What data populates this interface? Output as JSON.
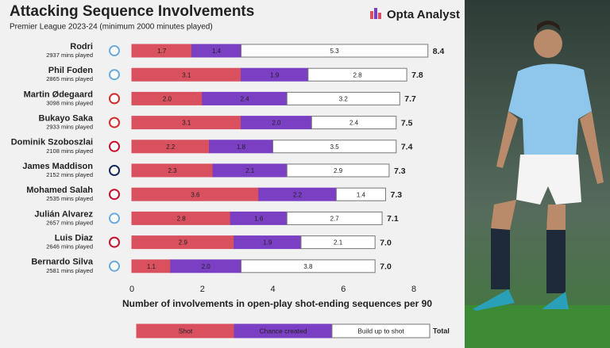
{
  "chart_data": {
    "type": "stacked-barh",
    "title": "Attacking Sequence Involvements",
    "subtitle": "Premier League 2023-24 (minimum 2000 minutes played)",
    "brand": "Opta Analyst",
    "xlabel": "Number of involvements in open-play shot-ending sequences per 90",
    "categories": [
      "Rodri",
      "Phil Foden",
      "Martin Ødegaard",
      "Bukayo Saka",
      "Dominik Szoboszlai",
      "James Maddison",
      "Mohamed Salah",
      "Julián Alvarez",
      "Luis Diaz",
      "Bernardo Silva"
    ],
    "sublabels": [
      "2937 mins played",
      "2865 mins played",
      "3098 mins played",
      "2933 mins played",
      "2108 mins played",
      "2152 mins played",
      "2535 mins played",
      "2657 mins played",
      "2646 mins played",
      "2581 mins played"
    ],
    "series": [
      {
        "name": "Shot",
        "color": "#d9505f",
        "values": [
          1.7,
          3.1,
          2.0,
          3.1,
          2.2,
          2.3,
          3.6,
          2.8,
          2.9,
          1.1
        ],
        "value_labels": [
          "1.7",
          "3.1",
          "2.0",
          "3.1",
          "2.2",
          "2.3",
          "3.6",
          "2.8",
          "2.9",
          "1.1"
        ]
      },
      {
        "name": "Chance created",
        "color": "#7b3fc4",
        "values": [
          1.4,
          1.9,
          2.4,
          2.0,
          1.8,
          2.1,
          2.2,
          1.6,
          1.9,
          2.0
        ],
        "value_labels": [
          "1.4",
          "1.9",
          "2.4",
          "2.0",
          "1.8",
          "2.1",
          "2.2",
          "1.6",
          "1.9",
          "2.0"
        ]
      },
      {
        "name": "Build up to shot",
        "color": "#ffffff",
        "values": [
          5.3,
          2.8,
          3.2,
          2.4,
          3.5,
          2.9,
          1.4,
          2.7,
          2.1,
          3.8
        ],
        "value_labels": [
          "5.3",
          "2.8",
          "3.2",
          "2.4",
          "3.5",
          "2.9",
          "1.4",
          "2.7",
          "2.1",
          "3.8"
        ]
      }
    ],
    "totals": {
      "name": "Total",
      "values": [
        8.4,
        7.8,
        7.7,
        7.5,
        7.4,
        7.3,
        7.3,
        7.1,
        7.0,
        7.0
      ],
      "value_labels": [
        "8.4",
        "7.8",
        "7.7",
        "7.5",
        "7.4",
        "7.3",
        "7.3",
        "7.1",
        "7.0",
        "7.0"
      ]
    },
    "xlim": [
      0,
      8
    ],
    "xticks": [
      0,
      2,
      4,
      6,
      8
    ],
    "grid": false
  }
}
